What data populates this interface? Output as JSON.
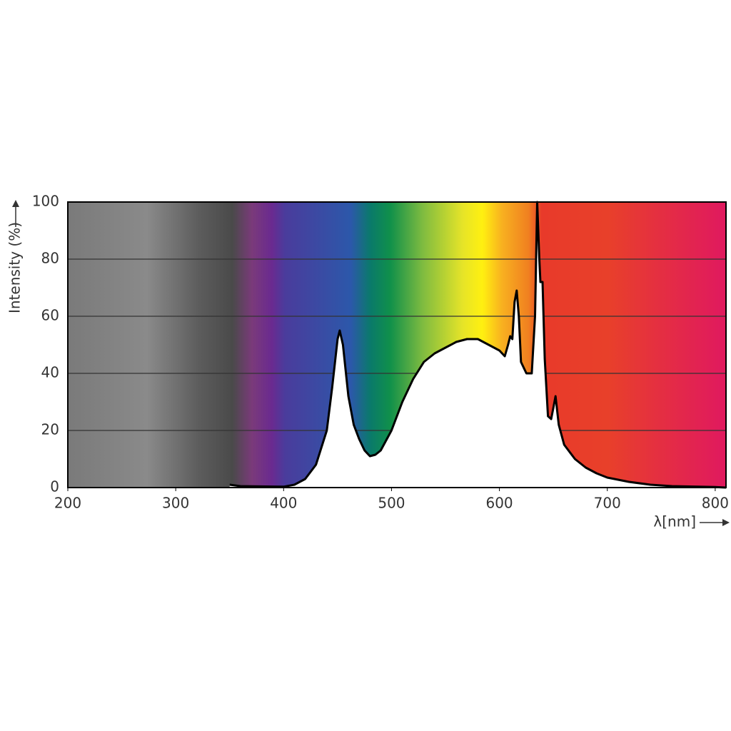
{
  "chart_data": {
    "type": "line",
    "x_label": "λ[nm]",
    "y_label": "Intensity (%)",
    "x": [
      350,
      360,
      400,
      410,
      420,
      430,
      440,
      445,
      450,
      452,
      455,
      460,
      465,
      470,
      475,
      480,
      485,
      490,
      500,
      510,
      520,
      530,
      540,
      550,
      560,
      570,
      580,
      590,
      600,
      605,
      608,
      610,
      612,
      614,
      616,
      618,
      620,
      625,
      630,
      633,
      635,
      637,
      638,
      640,
      642,
      645,
      648,
      650,
      652,
      655,
      660,
      670,
      680,
      690,
      700,
      720,
      740,
      760,
      800,
      810
    ],
    "series": [
      {
        "color": "#000000",
        "values": [
          1,
          0.5,
          0.3,
          1,
          3,
          8,
          20,
          35,
          52,
          55,
          50,
          32,
          22,
          17,
          13,
          11,
          11.5,
          13,
          20,
          30,
          38,
          44,
          47,
          49,
          51,
          52,
          52,
          50,
          48,
          46,
          50,
          53,
          52,
          65,
          69,
          60,
          44,
          40,
          40,
          60,
          100,
          80,
          72,
          72,
          45,
          25,
          24,
          28,
          32,
          22,
          15,
          10,
          7,
          5,
          3.5,
          2,
          1,
          0.5,
          0.2,
          0
        ]
      }
    ],
    "xlim": [
      200,
      810
    ],
    "ylim": [
      0,
      100
    ],
    "xticks": [
      200,
      300,
      400,
      500,
      600,
      700,
      800
    ],
    "yticks": [
      0,
      20,
      40,
      60,
      80,
      100
    ],
    "grid": true
  }
}
